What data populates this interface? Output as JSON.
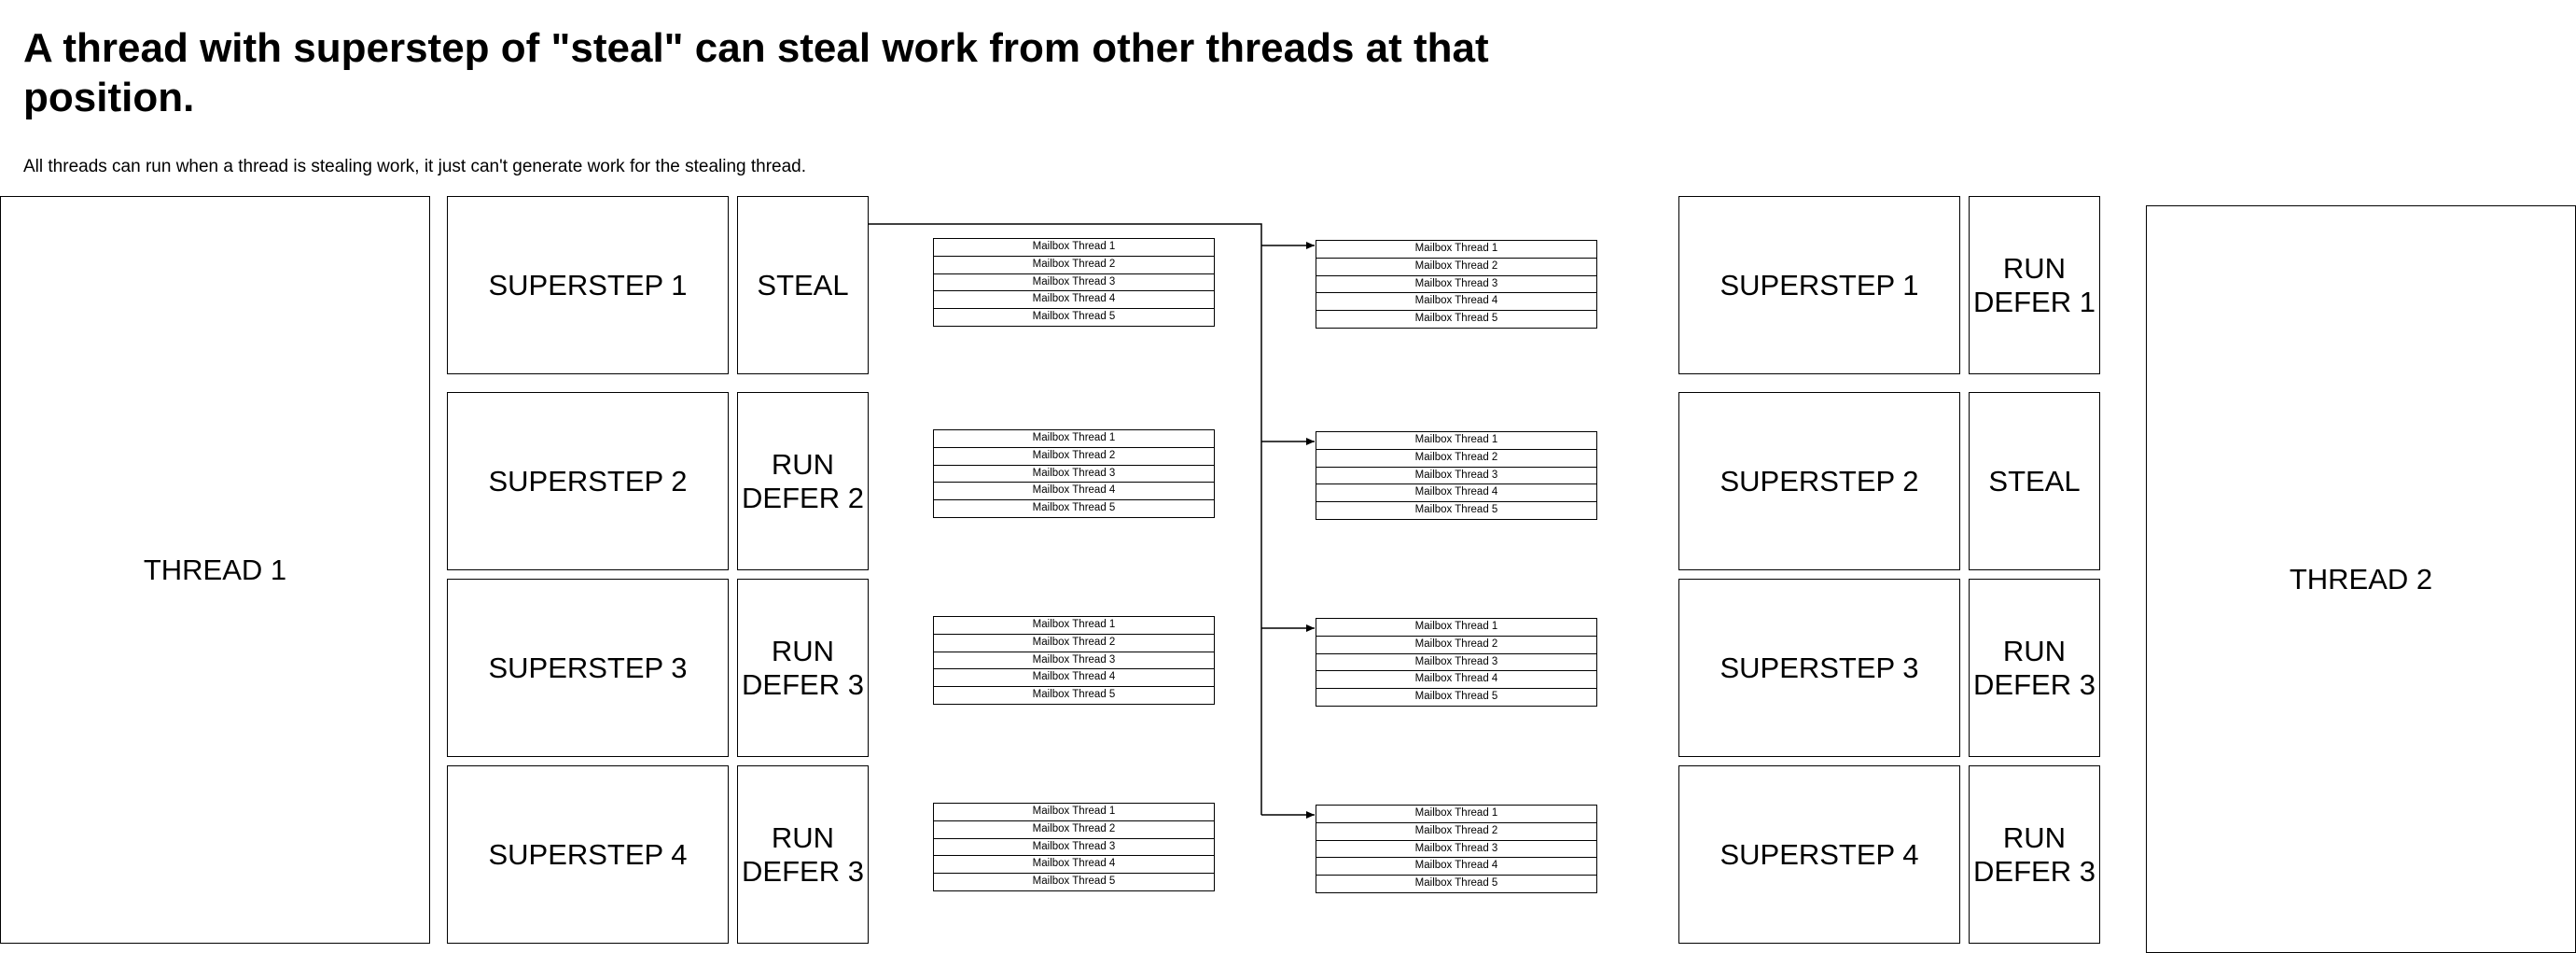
{
  "header": {
    "title": "A thread with superstep of \"steal\" can steal work from other threads at that position.",
    "subtitle": "All threads can run when a thread is stealing work, it just can't generate work for the stealing thread."
  },
  "threads": {
    "thread1": {
      "name": "THREAD 1",
      "supersteps": [
        {
          "label": "SUPERSTEP 1",
          "action": "STEAL"
        },
        {
          "label": "SUPERSTEP 2",
          "action": "RUN\nDEFER 2"
        },
        {
          "label": "SUPERSTEP 3",
          "action": "RUN\nDEFER 3"
        },
        {
          "label": "SUPERSTEP 4",
          "action": "RUN\nDEFER 3"
        }
      ]
    },
    "thread2": {
      "name": "THREAD 2",
      "supersteps": [
        {
          "label": "SUPERSTEP 1",
          "action": "RUN\nDEFER 1"
        },
        {
          "label": "SUPERSTEP 2",
          "action": "STEAL"
        },
        {
          "label": "SUPERSTEP 3",
          "action": "RUN\nDEFER 3"
        },
        {
          "label": "SUPERSTEP 4",
          "action": "RUN\nDEFER 3"
        }
      ]
    }
  },
  "mailboxes": {
    "left": [
      [
        "Mailbox Thread 1",
        "Mailbox Thread 2",
        "Mailbox Thread 3",
        "Mailbox Thread 4",
        "Mailbox Thread 5"
      ],
      [
        "Mailbox Thread 1",
        "Mailbox Thread 2",
        "Mailbox Thread 3",
        "Mailbox Thread 4",
        "Mailbox Thread 5"
      ],
      [
        "Mailbox Thread 1",
        "Mailbox Thread 2",
        "Mailbox Thread 3",
        "Mailbox Thread 4",
        "Mailbox Thread 5"
      ],
      [
        "Mailbox Thread 1",
        "Mailbox Thread 2",
        "Mailbox Thread 3",
        "Mailbox Thread 4",
        "Mailbox Thread 5"
      ]
    ],
    "right": [
      [
        "Mailbox Thread 1",
        "Mailbox Thread 2",
        "Mailbox Thread 3",
        "Mailbox Thread 4",
        "Mailbox Thread 5"
      ],
      [
        "Mailbox Thread 1",
        "Mailbox Thread 2",
        "Mailbox Thread 3",
        "Mailbox Thread 4",
        "Mailbox Thread 5"
      ],
      [
        "Mailbox Thread 1",
        "Mailbox Thread 2",
        "Mailbox Thread 3",
        "Mailbox Thread 4",
        "Mailbox Thread 5"
      ],
      [
        "Mailbox Thread 1",
        "Mailbox Thread 2",
        "Mailbox Thread 3",
        "Mailbox Thread 4",
        "Mailbox Thread 5"
      ]
    ]
  },
  "colors": {
    "stroke": "#000000",
    "background": "#ffffff"
  }
}
